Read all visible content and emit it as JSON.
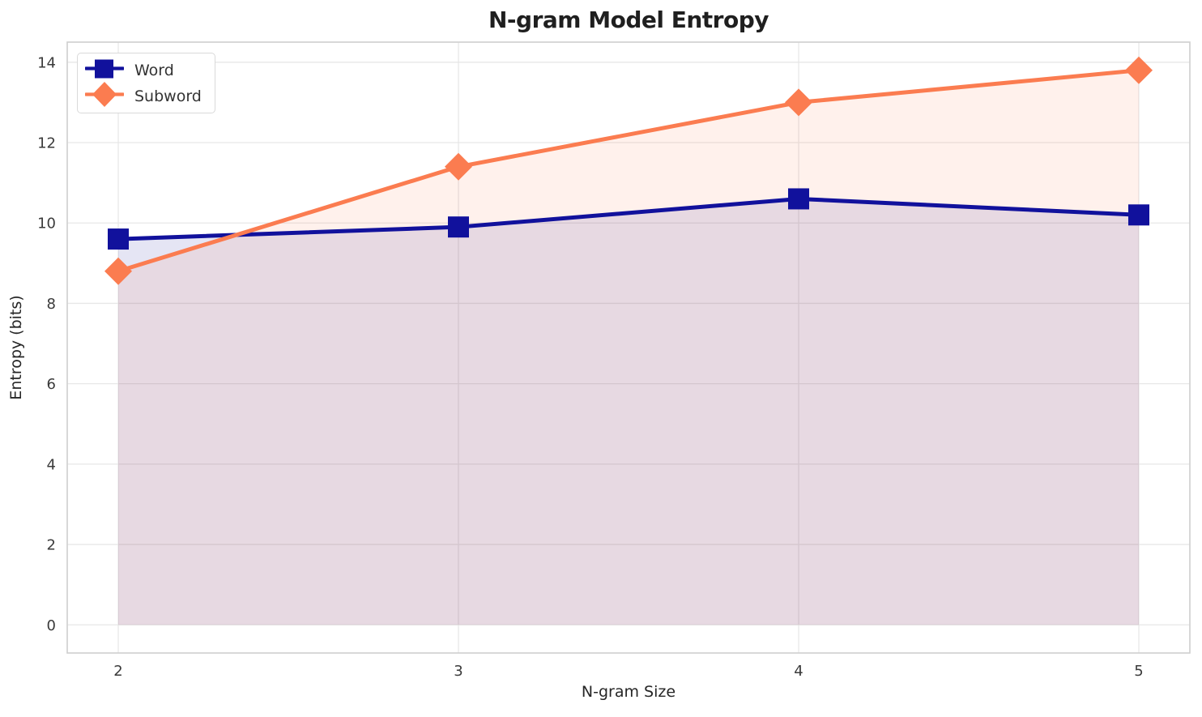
{
  "chart_data": {
    "type": "line",
    "title": "N-gram Model Entropy",
    "xlabel": "N-gram Size",
    "ylabel": "Entropy (bits)",
    "x": [
      2,
      3,
      4,
      5
    ],
    "series": [
      {
        "name": "Word",
        "color": "#11119C",
        "marker": "square",
        "values": [
          9.6,
          9.9,
          10.6,
          10.2
        ]
      },
      {
        "name": "Subword",
        "color": "#FB7C50",
        "marker": "diamond",
        "values": [
          8.8,
          11.4,
          13.0,
          13.8
        ]
      }
    ],
    "xticks": [
      "2",
      "3",
      "4",
      "5"
    ],
    "yticks": [
      "0",
      "2",
      "4",
      "6",
      "8",
      "10",
      "12",
      "14"
    ],
    "xlim": [
      1.85,
      5.15
    ],
    "ylim": [
      -0.7,
      14.5
    ],
    "grid": true,
    "area_fill": true,
    "fill_opacity": 0.11,
    "legend_position": "upper left",
    "colors": {
      "grid": "#e7e7e7",
      "spine": "#cfcfcf",
      "tick_label": "#3a3a3a",
      "axis_label": "#262626",
      "title": "#1f1f1f",
      "background": "#ffffff"
    }
  }
}
